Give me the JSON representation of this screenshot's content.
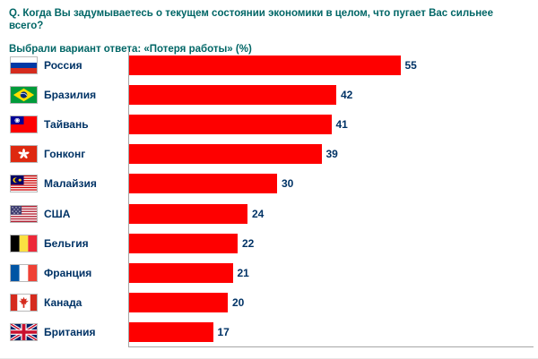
{
  "header": {
    "question": "Q. Когда Вы задумываетесь о текущем состоянии экономики в целом, что пугает Вас сильнее всего?",
    "subtitle": "Выбрали вариант ответа: «Потеря работы» (%)"
  },
  "colors": {
    "bar_color": "#fe0000",
    "title_color": "#006666",
    "label_color": "#003366",
    "axis_color": "#a6a6a6"
  },
  "chart_data": {
    "type": "bar",
    "orientation": "horizontal",
    "title": "Q. Когда Вы задумываетесь о текущем состоянии экономики в целом, что пугает Вас сильнее всего?",
    "subtitle": "Выбрали вариант ответа: «Потеря работы» (%)",
    "xlabel": "",
    "ylabel": "",
    "xlim": [
      0,
      60
    ],
    "grid": false,
    "value_labels": true,
    "categories": [
      "Россия",
      "Бразилия",
      "Тайвань",
      "Гонконг",
      "Малайзия",
      "США",
      "Бельгия",
      "Франция",
      "Канада",
      "Британия"
    ],
    "values": [
      55,
      42,
      41,
      39,
      30,
      24,
      22,
      21,
      20,
      17
    ],
    "flag_icons": [
      "flag-russia-icon",
      "flag-brazil-icon",
      "flag-taiwan-icon",
      "flag-hongkong-icon",
      "flag-malaysia-icon",
      "flag-usa-icon",
      "flag-belgium-icon",
      "flag-france-icon",
      "flag-canada-icon",
      "flag-uk-icon"
    ]
  }
}
